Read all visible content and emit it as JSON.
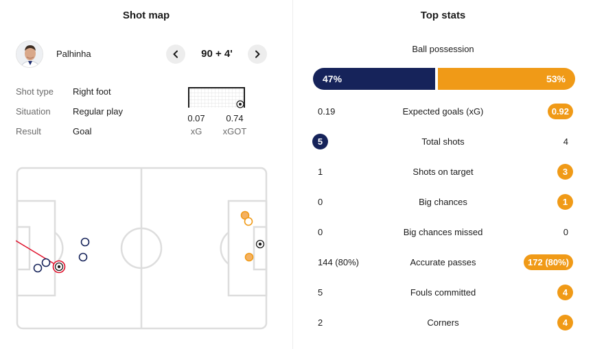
{
  "shot_map": {
    "title": "Shot map",
    "player": {
      "name": "Palhinha"
    },
    "minute": "90 + 4'",
    "details": [
      {
        "label": "Shot type",
        "value": "Right foot"
      },
      {
        "label": "Situation",
        "value": "Regular play"
      },
      {
        "label": "Result",
        "value": "Goal"
      }
    ],
    "xg": {
      "value": "0.07",
      "label": "xG"
    },
    "xgot": {
      "value": "0.74",
      "label": "xGOT"
    },
    "icons": {
      "prev": "chevron-left-icon",
      "next": "chevron-right-icon",
      "ball": "football-icon"
    }
  },
  "top_stats": {
    "title": "Top stats",
    "possession": {
      "label": "Ball possession",
      "home": "47%",
      "away": "53%",
      "home_value": 47,
      "away_value": 53
    },
    "rows": [
      {
        "name": "Expected goals (xG)",
        "home": "0.19",
        "away": "0.92",
        "highlight": "away"
      },
      {
        "name": "Total shots",
        "home": "5",
        "away": "4",
        "highlight": "home"
      },
      {
        "name": "Shots on target",
        "home": "1",
        "away": "3",
        "highlight": "away"
      },
      {
        "name": "Big chances",
        "home": "0",
        "away": "1",
        "highlight": "away"
      },
      {
        "name": "Big chances missed",
        "home": "0",
        "away": "0",
        "highlight": "none"
      },
      {
        "name": "Accurate passes",
        "home": "144 (80%)",
        "away": "172 (80%)",
        "highlight": "away"
      },
      {
        "name": "Fouls committed",
        "home": "5",
        "away": "4",
        "highlight": "away"
      },
      {
        "name": "Corners",
        "home": "2",
        "away": "4",
        "highlight": "away"
      }
    ]
  },
  "colors": {
    "home": "#16235a",
    "away": "#f09a17",
    "pitch_lines": "#dddddd",
    "shot_line": "#e0112b"
  }
}
